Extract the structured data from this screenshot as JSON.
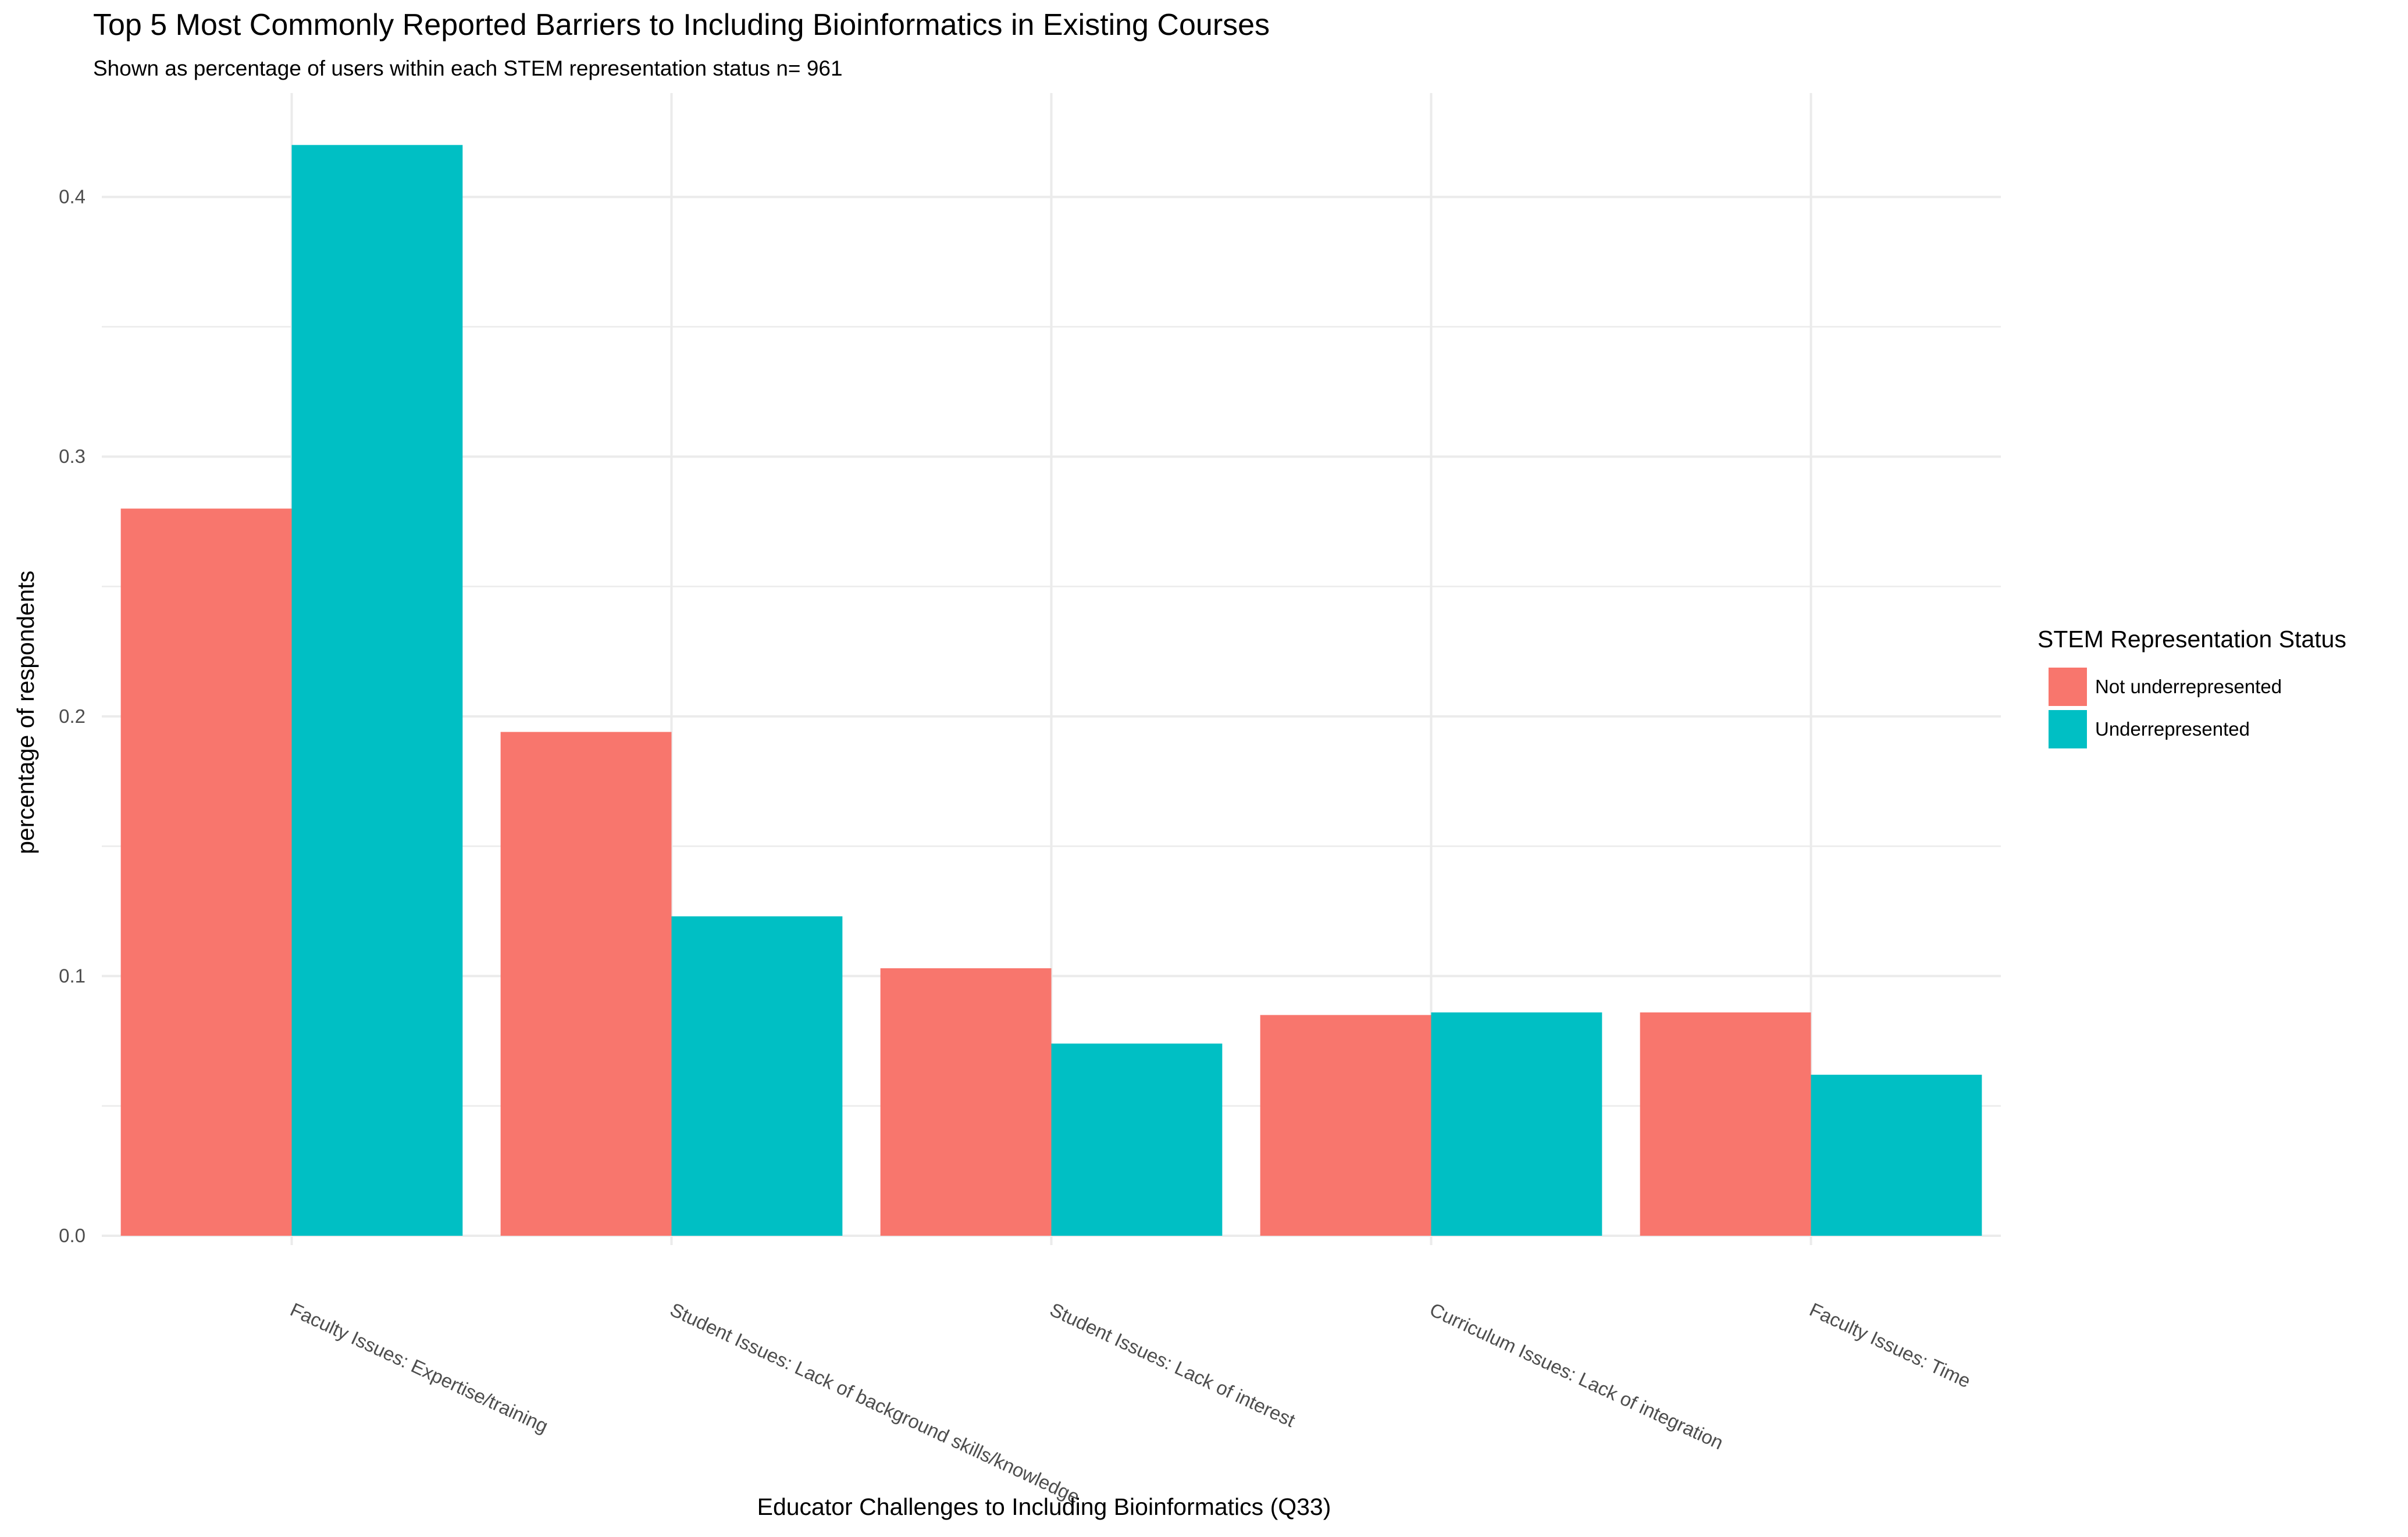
{
  "chart_data": {
    "type": "bar",
    "title": "Top 5 Most Commonly Reported Barriers to Including Bioinformatics in Existing Courses",
    "subtitle": "Shown as percentage of users within each STEM representation status n= 961",
    "xlabel": "Educator Challenges to Including Bioinformatics (Q33)",
    "ylabel": "percentage of respondents",
    "categories": [
      "Faculty Issues: Expertise/training",
      "Student Issues: Lack of background skills/knowledge",
      "Student Issues: Lack of interest",
      "Curriculum Issues: Lack of integration",
      "Faculty Issues: Time"
    ],
    "series": [
      {
        "name": "Not underrepresented",
        "color": "#F8766D",
        "values": [
          0.28,
          0.194,
          0.103,
          0.085,
          0.086
        ]
      },
      {
        "name": "Underrepresented",
        "color": "#00BFC4",
        "values": [
          0.42,
          0.123,
          0.074,
          0.086,
          0.062
        ]
      }
    ],
    "ylim": [
      0,
      0.44
    ],
    "yticks": [
      "0.0",
      "0.1",
      "0.2",
      "0.3",
      "0.4"
    ],
    "grid": true,
    "legend": {
      "title": "STEM Representation Status",
      "position": "right"
    }
  }
}
